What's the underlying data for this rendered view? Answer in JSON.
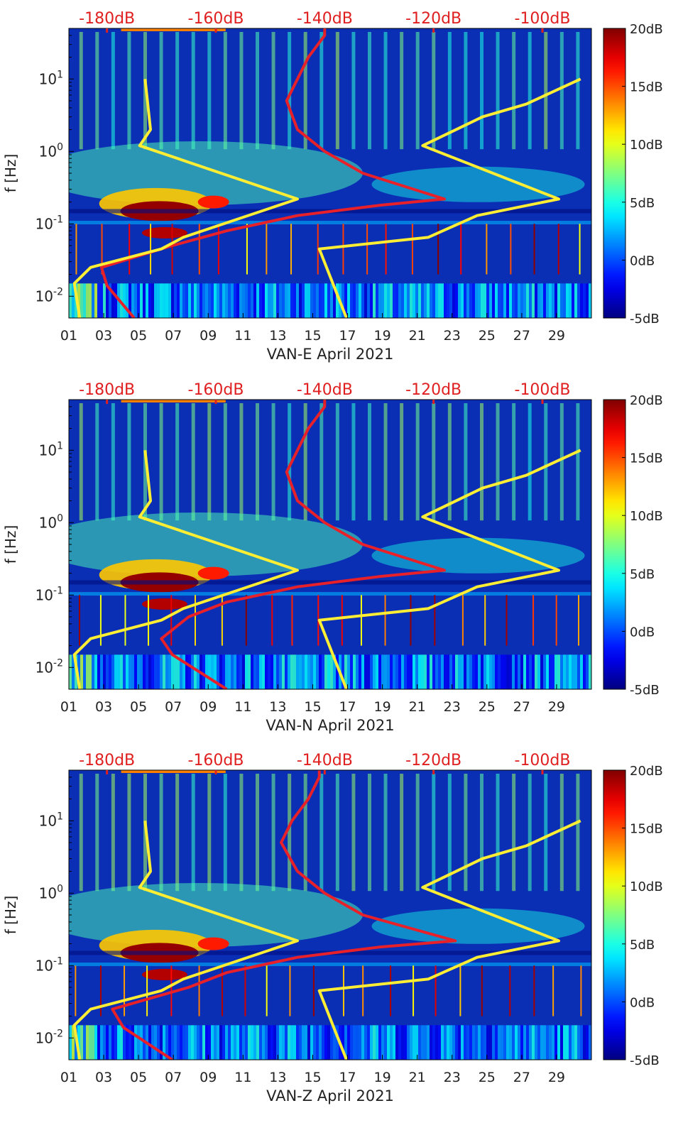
{
  "figure": {
    "x_ticks": [
      "01",
      "03",
      "05",
      "07",
      "09",
      "11",
      "13",
      "15",
      "17",
      "19",
      "21",
      "23",
      "25",
      "27",
      "29"
    ],
    "y_ticks": [
      "10^{-2}",
      "10^{-1}",
      "10^{0}",
      "10^{1}"
    ],
    "top_ticks": [
      "-180dB",
      "-160dB",
      "-140dB",
      "-120dB",
      "-100dB"
    ],
    "colorbar_ticks": [
      "20dB",
      "15dB",
      "10dB",
      "5dB",
      "0dB",
      "-5dB"
    ],
    "colors": {
      "red_curve": "#e8202a",
      "yellow_curve": "#ffee33",
      "top_axis_text": "#e02020",
      "background_spectrogram": "#0a2fb5"
    }
  },
  "chart_data": [
    {
      "type": "heatmap",
      "xlabel": "VAN-E April 2021",
      "ylabel": "f [Hz]",
      "x_range_days": [
        1,
        31
      ],
      "y_range_hz": [
        0.005,
        50
      ],
      "y_scale": "log",
      "top_axis_range_db": [
        -187,
        -91
      ],
      "colorbar_range_db": [
        -5,
        20
      ],
      "colormap": "jet",
      "series": [
        {
          "curve": "red",
          "points_db_hz": [
            [
              -175,
              0.005
            ],
            [
              -180,
              0.014
            ],
            [
              -181,
              0.025
            ],
            [
              -168,
              0.05
            ],
            [
              -158,
              0.08
            ],
            [
              -145,
              0.13
            ],
            [
              -130,
              0.18
            ],
            [
              -118,
              0.22
            ],
            [
              -133,
              0.5
            ],
            [
              -140,
              1
            ],
            [
              -145,
              2
            ],
            [
              -147,
              5
            ],
            [
              -145,
              10
            ],
            [
              -143,
              20
            ],
            [
              -140,
              40
            ],
            [
              -140,
              50
            ]
          ]
        },
        {
          "curve": "yellow",
          "points_db_hz": [
            [
              -185,
              0.005
            ],
            [
              -186,
              0.015
            ],
            [
              -183,
              0.025
            ],
            [
              -170,
              0.045
            ],
            [
              -166,
              0.065
            ],
            [
              -145,
              0.22
            ],
            [
              -174,
              1.2
            ],
            [
              -172,
              2
            ],
            [
              -173,
              10
            ]
          ]
        },
        {
          "curve": "yellow",
          "points_db_hz": [
            [
              -136,
              0.005
            ],
            [
              -141,
              0.045
            ],
            [
              -121,
              0.065
            ],
            [
              -112,
              0.13
            ],
            [
              -97,
              0.22
            ],
            [
              -122,
              1.2
            ],
            [
              -111,
              3
            ],
            [
              -103,
              4.5
            ],
            [
              -93,
              10
            ]
          ]
        }
      ]
    },
    {
      "type": "heatmap",
      "xlabel": "VAN-N April 2021",
      "ylabel": "f [Hz]",
      "x_range_days": [
        1,
        31
      ],
      "y_range_hz": [
        0.005,
        50
      ],
      "y_scale": "log",
      "top_axis_range_db": [
        -187,
        -91
      ],
      "colorbar_range_db": [
        -5,
        20
      ],
      "colormap": "jet",
      "series": [
        {
          "curve": "red",
          "points_db_hz": [
            [
              -158,
              0.005
            ],
            [
              -168,
              0.015
            ],
            [
              -170,
              0.025
            ],
            [
              -165,
              0.05
            ],
            [
              -158,
              0.08
            ],
            [
              -145,
              0.13
            ],
            [
              -130,
              0.18
            ],
            [
              -118,
              0.22
            ],
            [
              -133,
              0.5
            ],
            [
              -140,
              1
            ],
            [
              -145,
              2
            ],
            [
              -147,
              5
            ],
            [
              -145,
              10
            ],
            [
              -143,
              20
            ],
            [
              -140,
              40
            ],
            [
              -140,
              50
            ]
          ]
        },
        {
          "curve": "yellow",
          "points_db_hz": [
            [
              -185,
              0.005
            ],
            [
              -186,
              0.015
            ],
            [
              -183,
              0.025
            ],
            [
              -170,
              0.045
            ],
            [
              -166,
              0.065
            ],
            [
              -145,
              0.22
            ],
            [
              -174,
              1.2
            ],
            [
              -172,
              2
            ],
            [
              -173,
              10
            ]
          ]
        },
        {
          "curve": "yellow",
          "points_db_hz": [
            [
              -136,
              0.005
            ],
            [
              -141,
              0.045
            ],
            [
              -121,
              0.065
            ],
            [
              -112,
              0.13
            ],
            [
              -97,
              0.22
            ],
            [
              -122,
              1.2
            ],
            [
              -111,
              3
            ],
            [
              -103,
              4.5
            ],
            [
              -93,
              10
            ]
          ]
        }
      ]
    },
    {
      "type": "heatmap",
      "xlabel": "VAN-Z April 2021",
      "ylabel": "f [Hz]",
      "x_range_days": [
        1,
        31
      ],
      "y_range_hz": [
        0.005,
        50
      ],
      "y_scale": "log",
      "top_axis_range_db": [
        -187,
        -91
      ],
      "colorbar_range_db": [
        -5,
        20
      ],
      "colormap": "jet",
      "series": [
        {
          "curve": "red",
          "points_db_hz": [
            [
              -168,
              0.005
            ],
            [
              -177,
              0.014
            ],
            [
              -179,
              0.025
            ],
            [
              -165,
              0.05
            ],
            [
              -158,
              0.08
            ],
            [
              -145,
              0.13
            ],
            [
              -130,
              0.18
            ],
            [
              -116,
              0.22
            ],
            [
              -133,
              0.5
            ],
            [
              -140,
              1
            ],
            [
              -145,
              2
            ],
            [
              -148,
              5
            ],
            [
              -146,
              10
            ],
            [
              -143,
              20
            ],
            [
              -141,
              40
            ],
            [
              -141,
              50
            ]
          ]
        },
        {
          "curve": "yellow",
          "points_db_hz": [
            [
              -185,
              0.005
            ],
            [
              -186,
              0.015
            ],
            [
              -183,
              0.025
            ],
            [
              -170,
              0.045
            ],
            [
              -166,
              0.065
            ],
            [
              -145,
              0.22
            ],
            [
              -174,
              1.2
            ],
            [
              -172,
              2
            ],
            [
              -173,
              10
            ]
          ]
        },
        {
          "curve": "yellow",
          "points_db_hz": [
            [
              -136,
              0.005
            ],
            [
              -141,
              0.045
            ],
            [
              -121,
              0.065
            ],
            [
              -112,
              0.13
            ],
            [
              -97,
              0.22
            ],
            [
              -122,
              1.2
            ],
            [
              -111,
              3
            ],
            [
              -103,
              4.5
            ],
            [
              -93,
              10
            ]
          ]
        }
      ]
    }
  ]
}
